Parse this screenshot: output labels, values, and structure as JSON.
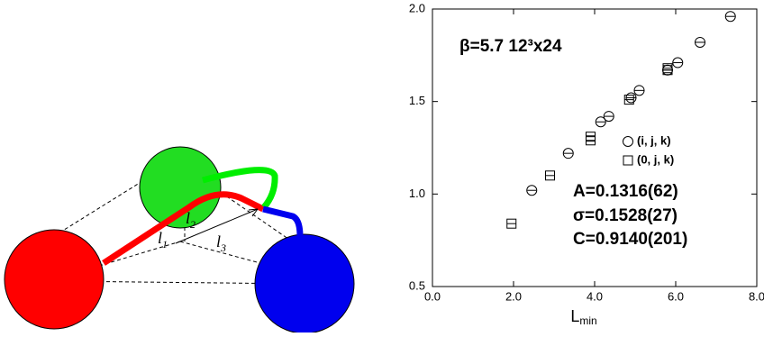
{
  "diagram": {
    "labels": [
      {
        "text": "l",
        "sub": "1"
      },
      {
        "text": "l",
        "sub": "2"
      },
      {
        "text": "l",
        "sub": "3"
      }
    ]
  },
  "chart_data": {
    "type": "scatter",
    "annotation": "β=5.7 12³x24",
    "fit_lines": [
      "A=0.1316(62)",
      "σ=0.1528(27)",
      "C=0.9140(201)"
    ],
    "x_label": "L",
    "x_label_subscript": "min",
    "xlim": [
      0,
      8
    ],
    "ylim": [
      0.5,
      2.0
    ],
    "xticks": [
      {
        "value": 0,
        "label": "0.0"
      },
      {
        "value": 2,
        "label": "2.0"
      },
      {
        "value": 4,
        "label": "4.0"
      },
      {
        "value": 6,
        "label": "6.0"
      },
      {
        "value": 8,
        "label": "8.0"
      }
    ],
    "yticks": [
      {
        "value": 0.5,
        "label": "0.5"
      },
      {
        "value": 1,
        "label": "1.0"
      },
      {
        "value": 1.5,
        "label": "1.5"
      },
      {
        "value": 2,
        "label": "2.0"
      }
    ],
    "series": [
      {
        "name": "(i, j, k)",
        "marker": "circle",
        "color": "#000000",
        "x": [
          2.45,
          3.35,
          4.15,
          4.35,
          4.9,
          5.1,
          5.8,
          6.05,
          6.6,
          7.35
        ],
        "values": [
          1.02,
          1.22,
          1.39,
          1.42,
          1.52,
          1.56,
          1.67,
          1.71,
          1.82,
          1.96
        ]
      },
      {
        "name": "(0, j, k)",
        "marker": "square",
        "color": "#000000",
        "x": [
          1.95,
          2.9,
          3.9,
          3.9,
          4.85,
          5.8,
          5.8
        ],
        "values": [
          0.84,
          1.1,
          1.29,
          1.31,
          1.51,
          1.67,
          1.68
        ]
      }
    ]
  }
}
